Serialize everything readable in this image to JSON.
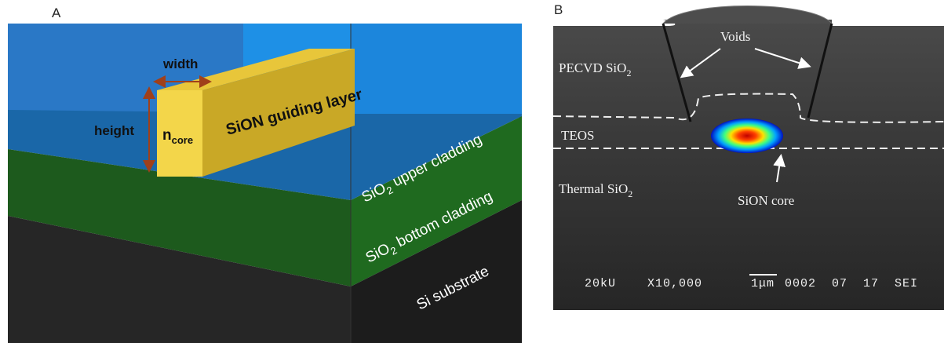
{
  "panel_a": {
    "label": "A",
    "width": "width",
    "height": "height",
    "n_core": {
      "base": "n",
      "sub": "core"
    },
    "waveguide": "SiON guiding layer",
    "upper_cladding": {
      "base": "SiO",
      "sub": "2",
      "rest": " upper cladding"
    },
    "bottom_cladding": {
      "base": "SiO",
      "sub": "2",
      "rest": " bottom cladding"
    },
    "substrate": "Si substrate"
  },
  "panel_b": {
    "label": "B",
    "pecvd": {
      "base": "PECVD SiO",
      "sub": "2"
    },
    "voids": "Voids",
    "teos": "TEOS",
    "thermal": {
      "base": "Thermal SiO",
      "sub": "2"
    },
    "core": "SiON core",
    "info": {
      "voltage": "20kU",
      "magnification": "X10,000",
      "scale": "1μm",
      "code": "0002  07  17  SEI"
    }
  }
}
